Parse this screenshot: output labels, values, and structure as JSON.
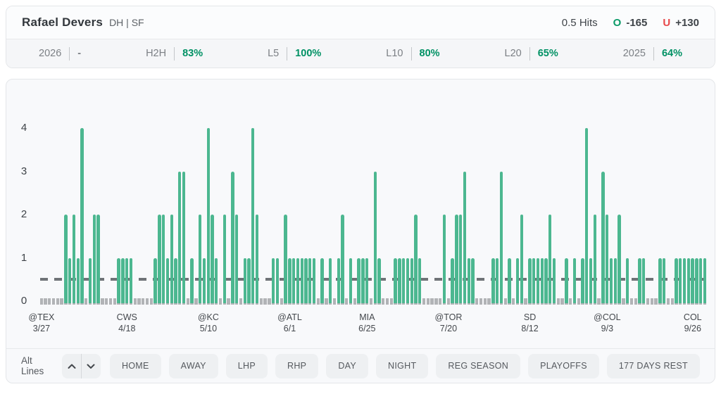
{
  "header": {
    "player_name": "Rafael Devers",
    "position": "DH | SF",
    "line": "0.5 Hits",
    "over": {
      "label": "O",
      "odds": "-165"
    },
    "under": {
      "label": "U",
      "odds": "+130"
    }
  },
  "stats": [
    {
      "label": "2026",
      "value": "-",
      "green": false
    },
    {
      "label": "H2H",
      "value": "83%",
      "green": true
    },
    {
      "label": "L5",
      "value": "100%",
      "green": true
    },
    {
      "label": "L10",
      "value": "80%",
      "green": true
    },
    {
      "label": "L20",
      "value": "65%",
      "green": true
    },
    {
      "label": "2025",
      "value": "64%",
      "green": true
    }
  ],
  "chart_data": {
    "type": "bar",
    "title": "",
    "xlabel": "",
    "ylabel": "",
    "ylim": [
      0,
      4.3
    ],
    "yticks": [
      0,
      1,
      2,
      3,
      4
    ],
    "threshold_line": 0.5,
    "grid": "off",
    "legend": "none",
    "bar_color": "#4cb790",
    "baseline_tick_color": "#b1b3b6",
    "threshold_color": "#6f7377",
    "values": [
      0,
      0,
      0,
      0,
      0,
      0,
      2,
      1,
      2,
      1,
      4,
      0,
      1,
      2,
      2,
      0,
      0,
      0,
      0,
      1,
      1,
      1,
      1,
      0,
      0,
      0,
      0,
      0,
      1,
      2,
      2,
      1,
      2,
      1,
      3,
      3,
      0,
      1,
      0,
      2,
      1,
      4,
      2,
      1,
      0,
      2,
      0,
      3,
      2,
      0,
      1,
      1,
      4,
      2,
      0,
      0,
      0,
      1,
      1,
      0,
      2,
      1,
      1,
      1,
      1,
      1,
      1,
      1,
      0,
      1,
      0,
      1,
      0,
      1,
      2,
      0,
      1,
      0,
      1,
      1,
      1,
      0,
      3,
      1,
      0,
      0,
      0,
      1,
      1,
      1,
      1,
      1,
      2,
      1,
      0,
      0,
      0,
      0,
      0,
      2,
      0,
      1,
      2,
      2,
      3,
      1,
      1,
      0,
      0,
      0,
      0,
      1,
      1,
      3,
      0,
      1,
      0,
      1,
      2,
      0,
      1,
      1,
      1,
      1,
      1,
      2,
      1,
      0,
      0,
      1,
      0,
      1,
      0,
      1,
      4,
      1,
      2,
      0,
      3,
      2,
      1,
      1,
      2,
      0,
      1,
      0,
      0,
      1,
      1,
      0,
      0,
      0,
      1,
      1,
      0,
      0,
      1,
      1,
      1,
      1,
      1,
      1,
      1,
      1
    ],
    "x_labels": [
      {
        "index": 0,
        "opponent": "@TEX",
        "date": "3/27"
      },
      {
        "index": 21,
        "opponent": "CWS",
        "date": "4/18"
      },
      {
        "index": 41,
        "opponent": "@KC",
        "date": "5/10"
      },
      {
        "index": 61,
        "opponent": "@ATL",
        "date": "6/1"
      },
      {
        "index": 80,
        "opponent": "MIA",
        "date": "6/25"
      },
      {
        "index": 100,
        "opponent": "@TOR",
        "date": "7/20"
      },
      {
        "index": 120,
        "opponent": "SD",
        "date": "8/12"
      },
      {
        "index": 139,
        "opponent": "@COL",
        "date": "9/3"
      },
      {
        "index": 160,
        "opponent": "COL",
        "date": "9/26"
      }
    ]
  },
  "controls": {
    "alt_lines_label": "Alt Lines",
    "filters": [
      "HOME",
      "AWAY",
      "LHP",
      "RHP",
      "DAY",
      "NIGHT",
      "REG SEASON",
      "PLAYOFFS",
      "177 DAYS REST"
    ]
  }
}
